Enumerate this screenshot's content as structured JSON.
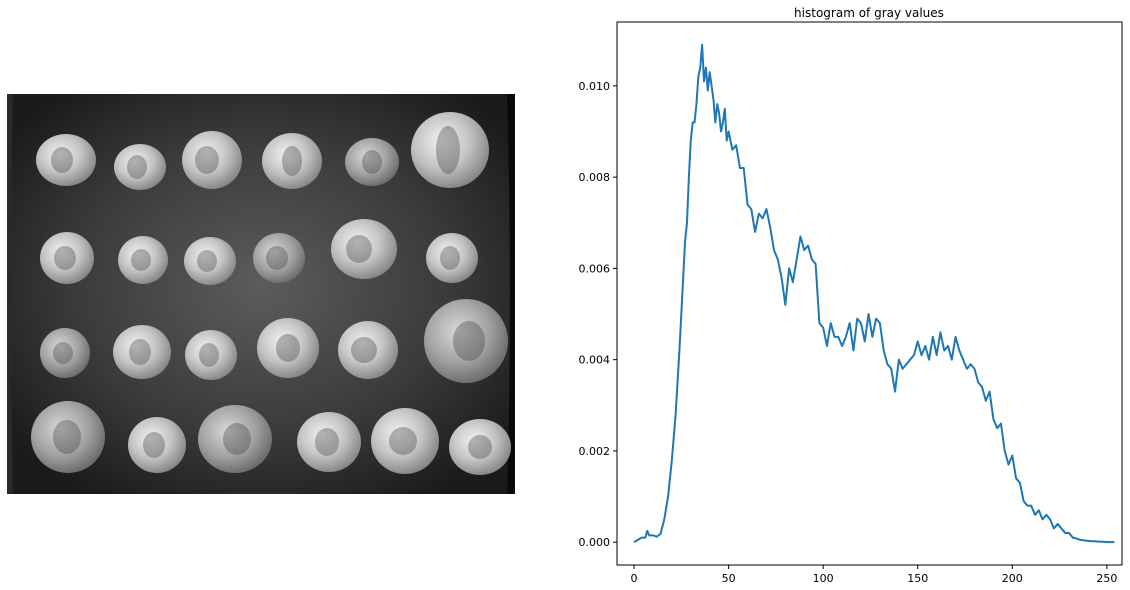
{
  "chart_data": {
    "type": "line",
    "title": "histogram of gray values",
    "xlabel": "",
    "ylabel": "",
    "xlim": [
      -9,
      258
    ],
    "ylim": [
      -0.0005,
      0.0114
    ],
    "xticks": [
      0,
      50,
      100,
      150,
      200,
      250
    ],
    "yticks": [
      0.0,
      0.002,
      0.004,
      0.006,
      0.008,
      0.01
    ],
    "ytick_labels": [
      "0.000",
      "0.002",
      "0.004",
      "0.006",
      "0.008",
      "0.010"
    ],
    "grid": false,
    "series": [
      {
        "color": "#1f77b4",
        "x": [
          0,
          2,
          4,
          6,
          7,
          8,
          10,
          12,
          14,
          16,
          18,
          20,
          22,
          24,
          25,
          26,
          27,
          28,
          29,
          30,
          31,
          32,
          33,
          34,
          35,
          36,
          37,
          38,
          39,
          40,
          41,
          42,
          43,
          44,
          45,
          46,
          47,
          48,
          49,
          50,
          52,
          54,
          56,
          58,
          60,
          62,
          64,
          66,
          68,
          70,
          72,
          74,
          76,
          78,
          80,
          82,
          84,
          86,
          88,
          90,
          92,
          94,
          96,
          98,
          100,
          102,
          104,
          106,
          108,
          110,
          112,
          114,
          116,
          118,
          120,
          122,
          124,
          126,
          128,
          130,
          132,
          134,
          136,
          138,
          140,
          142,
          144,
          146,
          148,
          150,
          152,
          154,
          156,
          158,
          160,
          162,
          164,
          166,
          168,
          170,
          172,
          174,
          176,
          178,
          180,
          182,
          184,
          186,
          188,
          190,
          192,
          194,
          196,
          198,
          200,
          202,
          204,
          206,
          208,
          210,
          212,
          214,
          216,
          218,
          220,
          222,
          224,
          226,
          228,
          230,
          232,
          234,
          236,
          238,
          240,
          242,
          244,
          246,
          248,
          250,
          252,
          254
        ],
        "y": [
          0.0,
          5e-05,
          0.0001,
          0.0001,
          0.00025,
          0.00015,
          0.00015,
          0.00012,
          0.00018,
          0.0005,
          0.001,
          0.0018,
          0.0028,
          0.0042,
          0.005,
          0.0058,
          0.0066,
          0.007,
          0.008,
          0.0088,
          0.0092,
          0.0092,
          0.0096,
          0.0102,
          0.0104,
          0.0109,
          0.0101,
          0.0104,
          0.0099,
          0.0103,
          0.01,
          0.0097,
          0.0092,
          0.0096,
          0.0094,
          0.009,
          0.0092,
          0.0095,
          0.0088,
          0.009,
          0.0086,
          0.0087,
          0.0082,
          0.0082,
          0.0074,
          0.0073,
          0.0068,
          0.0072,
          0.0071,
          0.0073,
          0.0069,
          0.0064,
          0.0062,
          0.0058,
          0.0052,
          0.006,
          0.0057,
          0.0062,
          0.0067,
          0.0064,
          0.0065,
          0.0062,
          0.0061,
          0.0048,
          0.0047,
          0.0043,
          0.0048,
          0.0045,
          0.0045,
          0.0043,
          0.0045,
          0.0048,
          0.0042,
          0.0049,
          0.0048,
          0.0044,
          0.005,
          0.0045,
          0.0049,
          0.0048,
          0.0042,
          0.0039,
          0.0038,
          0.0033,
          0.004,
          0.0038,
          0.0039,
          0.004,
          0.0041,
          0.0044,
          0.0041,
          0.0043,
          0.004,
          0.0045,
          0.0041,
          0.0046,
          0.0042,
          0.0043,
          0.004,
          0.0045,
          0.0042,
          0.004,
          0.0038,
          0.0039,
          0.0038,
          0.0035,
          0.0034,
          0.0031,
          0.0033,
          0.0027,
          0.0025,
          0.0026,
          0.002,
          0.0017,
          0.0019,
          0.0014,
          0.0013,
          0.0009,
          0.0008,
          0.0008,
          0.0006,
          0.0007,
          0.0005,
          0.0006,
          0.0005,
          0.0003,
          0.0004,
          0.0003,
          0.0002,
          0.0002,
          0.0001,
          8e-05,
          5e-05,
          4e-05,
          3e-05,
          2e-05,
          2e-05,
          1e-05,
          1e-05,
          0.0,
          0.0,
          0.0
        ]
      }
    ]
  }
}
